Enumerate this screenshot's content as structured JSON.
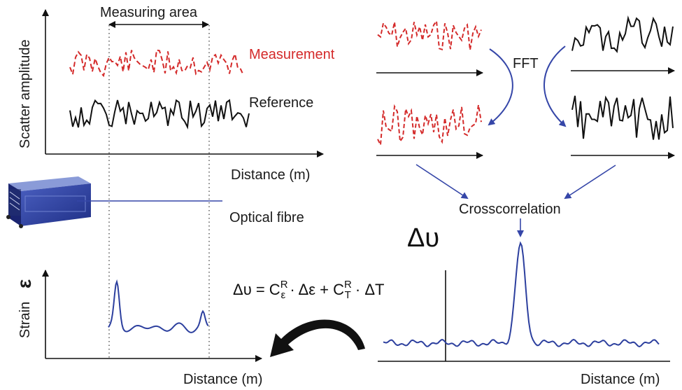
{
  "labels": {
    "measuring_area": "Measuring area",
    "y_scatter": "Scatter amplitude",
    "measurement": "Measurement",
    "reference": "Reference",
    "distance_top": "Distance (m)",
    "optical_fibre": "Optical fibre",
    "fft": "FFT",
    "crosscorrelation": "Crosscorrelation",
    "delta_nu": "Δυ",
    "strain_word": "Strain",
    "strain_symbol": "ε",
    "distance_bottom_left": "Distance (m)",
    "distance_bottom_right": "Distance (m)"
  },
  "equation": {
    "lhs": "Δυ = C",
    "sup1": "R",
    "sub1": "ε",
    "mid": " · Δε +  C",
    "sup2": "R",
    "sub2": "T",
    "tail": " · ΔT"
  },
  "colors": {
    "measurement": "#d42a2a",
    "reference": "#111111",
    "blue": "#3546a8",
    "curve_blue": "#2c3f9e"
  },
  "icons": {
    "device": "interrogator-device-icon",
    "curved_arrow": "curved-black-arrow-icon"
  }
}
